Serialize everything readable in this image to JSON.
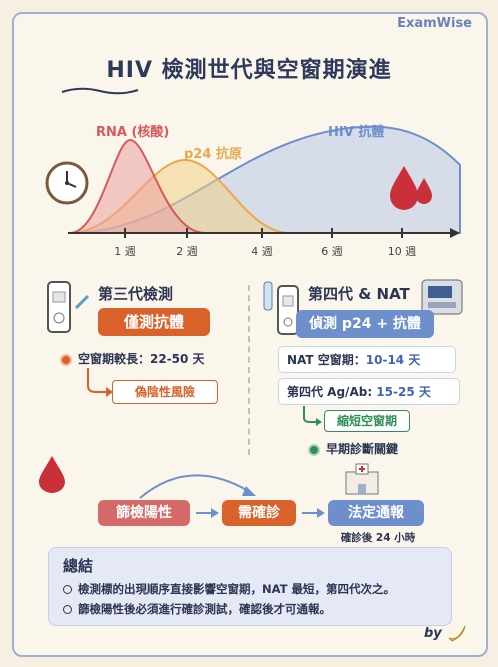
{
  "brand": "ExamWise",
  "title": "HIV 檢測世代與空窗期演進",
  "chart": {
    "labels": {
      "rna": "RNA (核酸)",
      "p24": "p24 抗原",
      "hiv_ab": "HIV 抗體"
    },
    "ticks": [
      "1 週",
      "2 週",
      "4 週",
      "6 週",
      "10 週"
    ]
  },
  "colors": {
    "rna": "#d9595b",
    "p24": "#e8a94a",
    "antibody": "#6d8fcb",
    "orange": "#d9622b",
    "green": "#2f8f57",
    "blue_pill": "#6d8fcb"
  },
  "third_gen": {
    "title": "第三代檢測",
    "pill": "僅測抗體",
    "window": "空窗期較長：22-50 天",
    "risk": "偽陰性風險"
  },
  "fourth_gen": {
    "title": "第四代 & NAT",
    "pill": "偵測 p24 + 抗體",
    "nat_label": "NAT 空窗期：",
    "nat_value": "10-14 天",
    "agab_label": "第四代 Ag/Ab: ",
    "agab_value": "15-25 天",
    "shorten": "縮短空窗期",
    "key": "早期診斷關鍵"
  },
  "flow": {
    "screen": "篩檢陽性",
    "confirm": "需確診",
    "report": "法定通報",
    "report_note": "確診後 24 小時"
  },
  "summary": {
    "title": "總結",
    "lines": [
      "檢測標的出現順序直接影響空窗期，NAT 最短，第四代次之。",
      "篩檢陽性後必須進行確診測試，確認後才可通報。"
    ]
  },
  "signature": "by"
}
